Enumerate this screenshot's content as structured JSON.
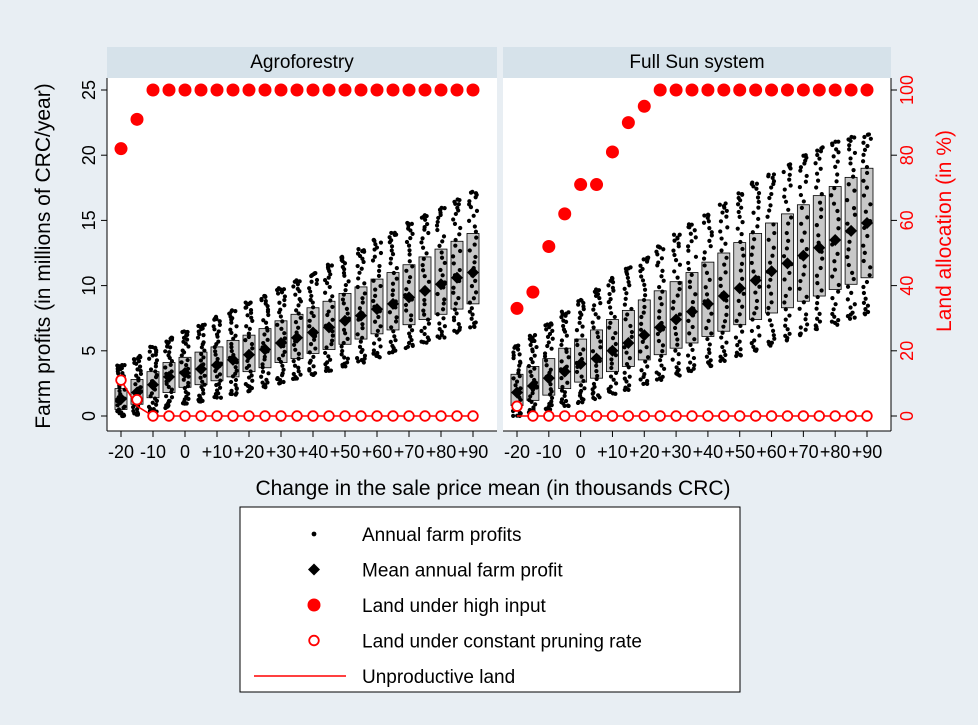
{
  "chart_data": {
    "type": "scatter",
    "xlabel": "Change in the sale price mean (in thousands CRC)",
    "ylabel_left": "Farm profits (in millions of CRC/year)",
    "ylabel_right": "Land allocation (in %)",
    "ylim_left": [
      0,
      25
    ],
    "ylim_right": [
      0,
      100
    ],
    "yticks_left": [
      "0",
      "5",
      "10",
      "15",
      "20",
      "25"
    ],
    "yticks_right": [
      "0",
      "20",
      "40",
      "60",
      "80",
      "100"
    ],
    "x": [
      -20,
      -15,
      -10,
      -5,
      0,
      5,
      10,
      15,
      20,
      25,
      30,
      35,
      40,
      45,
      50,
      55,
      60,
      65,
      70,
      75,
      80,
      85,
      90
    ],
    "xtick_labels": [
      "-20",
      "-10",
      "0",
      "+10",
      "+20",
      "+30",
      "+40",
      "+50",
      "+60",
      "+70",
      "+80",
      "+90"
    ],
    "xtick_values": [
      -20,
      -10,
      0,
      10,
      20,
      30,
      40,
      50,
      60,
      70,
      80,
      90
    ],
    "colors": {
      "profit": "#000000",
      "land": "#ff0000",
      "box": "#c8c8c8",
      "header": "#d6e2ea",
      "plot_bg": "#ffffff",
      "page_bg": "#e8eef3"
    },
    "panels": [
      {
        "title": "Agroforestry",
        "mean_profit": [
          1.3,
          1.8,
          2.4,
          3.0,
          3.3,
          3.6,
          3.9,
          4.3,
          4.7,
          5.1,
          5.6,
          6.0,
          6.4,
          6.8,
          7.3,
          7.7,
          8.2,
          8.6,
          9.1,
          9.6,
          10.1,
          10.6,
          11.0
        ],
        "q1_profit": [
          0.5,
          0.9,
          1.4,
          1.8,
          2.2,
          2.4,
          2.7,
          3.0,
          3.4,
          3.7,
          4.1,
          4.4,
          4.8,
          5.1,
          5.5,
          5.9,
          6.3,
          6.6,
          7.0,
          7.4,
          7.8,
          8.2,
          8.6
        ],
        "q3_profit": [
          2.1,
          2.8,
          3.4,
          4.1,
          4.5,
          4.9,
          5.3,
          5.8,
          6.2,
          6.7,
          7.3,
          7.8,
          8.3,
          8.8,
          9.4,
          9.9,
          10.5,
          11.0,
          11.6,
          12.2,
          12.8,
          13.4,
          14.0
        ],
        "min_profit": [
          0.0,
          0.1,
          0.3,
          0.6,
          0.9,
          1.1,
          1.4,
          1.6,
          1.9,
          2.2,
          2.5,
          2.8,
          3.1,
          3.4,
          3.8,
          4.1,
          4.5,
          4.8,
          5.2,
          5.6,
          6.0,
          6.4,
          6.8
        ],
        "max_profit": [
          3.9,
          4.6,
          5.3,
          6.0,
          6.5,
          7.0,
          7.6,
          8.1,
          8.7,
          9.2,
          9.8,
          10.4,
          11.0,
          11.6,
          12.2,
          12.8,
          13.5,
          14.1,
          14.8,
          15.4,
          16.0,
          16.6,
          17.2
        ],
        "high_input_pct": [
          82,
          91,
          100,
          100,
          100,
          100,
          100,
          100,
          100,
          100,
          100,
          100,
          100,
          100,
          100,
          100,
          100,
          100,
          100,
          100,
          100,
          100,
          100
        ],
        "pruning_pct": [
          11,
          5,
          0,
          0,
          0,
          0,
          0,
          0,
          0,
          0,
          0,
          0,
          0,
          0,
          0,
          0,
          0,
          0,
          0,
          0,
          0,
          0,
          0
        ],
        "unproductive_pct": [
          11,
          3,
          0,
          0,
          0,
          0,
          0,
          0,
          0,
          0,
          0,
          0,
          0,
          0,
          0,
          0,
          0,
          0,
          0,
          0,
          0,
          0,
          0
        ]
      },
      {
        "title": "Full Sun system",
        "mean_profit": [
          1.8,
          2.3,
          2.9,
          3.4,
          4.0,
          4.4,
          5.0,
          5.6,
          6.2,
          6.8,
          7.4,
          8.0,
          8.6,
          9.2,
          9.8,
          10.4,
          11.1,
          11.7,
          12.3,
          12.9,
          13.5,
          14.2,
          14.8
        ],
        "q1_profit": [
          0.8,
          1.2,
          1.6,
          2.1,
          2.6,
          2.9,
          3.4,
          3.8,
          4.3,
          4.7,
          5.2,
          5.6,
          6.1,
          6.5,
          7.0,
          7.4,
          7.9,
          8.3,
          8.8,
          9.2,
          9.7,
          10.1,
          10.6
        ],
        "q3_profit": [
          3.2,
          3.8,
          4.4,
          5.2,
          5.9,
          6.6,
          7.4,
          8.1,
          8.9,
          9.6,
          10.3,
          11.0,
          11.8,
          12.5,
          13.3,
          14.0,
          14.8,
          15.5,
          16.2,
          16.9,
          17.6,
          18.3,
          19.0
        ],
        "min_profit": [
          0.0,
          0.2,
          0.4,
          0.7,
          1.0,
          1.3,
          1.7,
          2.0,
          2.4,
          2.7,
          3.1,
          3.4,
          3.8,
          4.2,
          4.6,
          5.0,
          5.4,
          5.8,
          6.2,
          6.6,
          7.0,
          7.4,
          7.8
        ],
        "max_profit": [
          5.4,
          6.2,
          7.1,
          8.0,
          8.9,
          9.7,
          10.6,
          11.4,
          12.2,
          13.0,
          13.9,
          14.7,
          15.5,
          16.3,
          17.1,
          17.9,
          18.6,
          19.3,
          20.0,
          20.6,
          21.1,
          21.4,
          21.6
        ],
        "high_input_pct": [
          33,
          38,
          52,
          62,
          71,
          71,
          81,
          90,
          95,
          100,
          100,
          100,
          100,
          100,
          100,
          100,
          100,
          100,
          100,
          100,
          100,
          100,
          100
        ],
        "pruning_pct": [
          3,
          0,
          0,
          0,
          0,
          0,
          0,
          0,
          0,
          0,
          0,
          0,
          0,
          0,
          0,
          0,
          0,
          0,
          0,
          0,
          0,
          0,
          0
        ],
        "unproductive_pct": [
          0,
          0,
          0,
          0,
          0,
          0,
          0,
          0,
          0,
          0,
          0,
          0,
          0,
          0,
          0,
          0,
          0,
          0,
          0,
          0,
          0,
          0,
          0
        ]
      }
    ],
    "legend": [
      {
        "label": "Annual farm profits",
        "marker": "small-dot"
      },
      {
        "label": "Mean annual farm profit",
        "marker": "diamond"
      },
      {
        "label": "Land under high input",
        "marker": "filled-circle"
      },
      {
        "label": "Land under constant pruning rate",
        "marker": "hollow-circle"
      },
      {
        "label": "Unproductive land",
        "marker": "line"
      }
    ],
    "legend_position": "bottom"
  }
}
